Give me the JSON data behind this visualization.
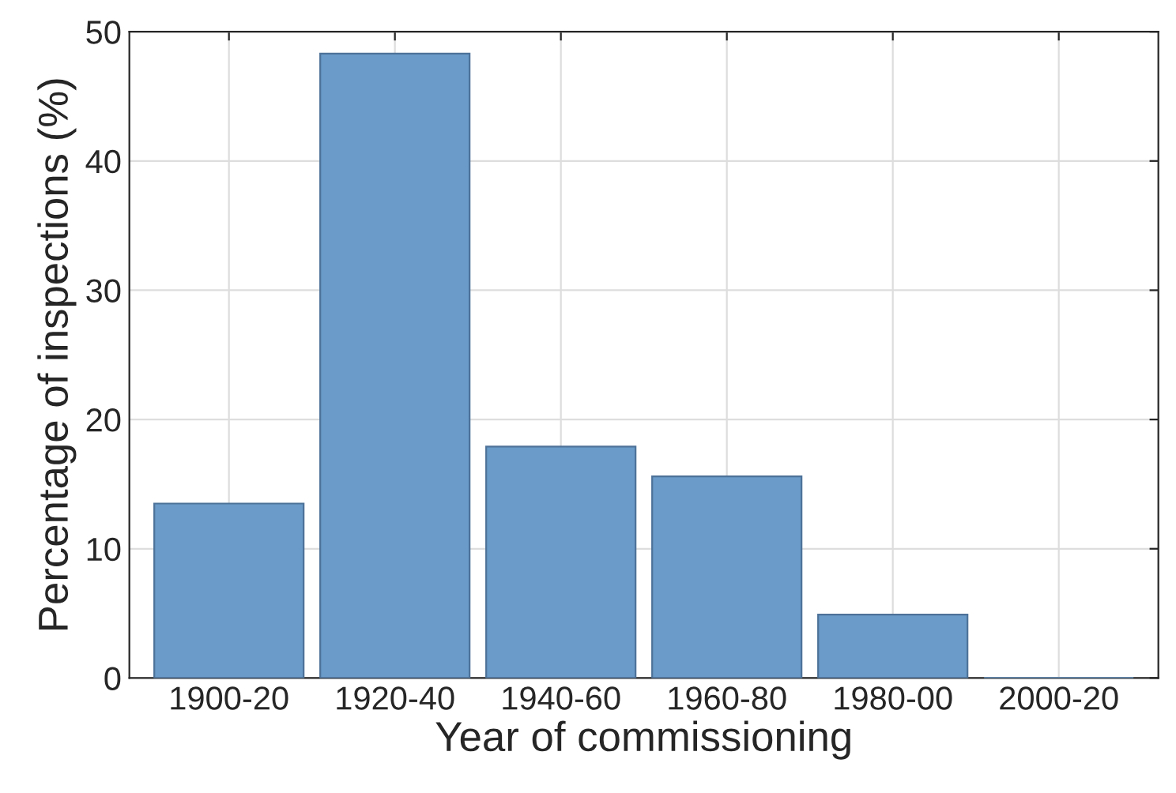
{
  "chart_data": {
    "type": "bar",
    "xlabel": "Year of commissioning",
    "ylabel": "Percentage of inspections (%)",
    "categories": [
      "1900-20",
      "1920-40",
      "1940-60",
      "1960-80",
      "1980-00",
      "2000-20"
    ],
    "values": [
      13.5,
      48.3,
      17.9,
      15.6,
      4.9,
      0
    ],
    "color": "#6a9bc9",
    "ylim": [
      0,
      50
    ],
    "yticks": [
      0,
      10,
      20,
      30,
      40,
      50
    ],
    "grid": true
  }
}
